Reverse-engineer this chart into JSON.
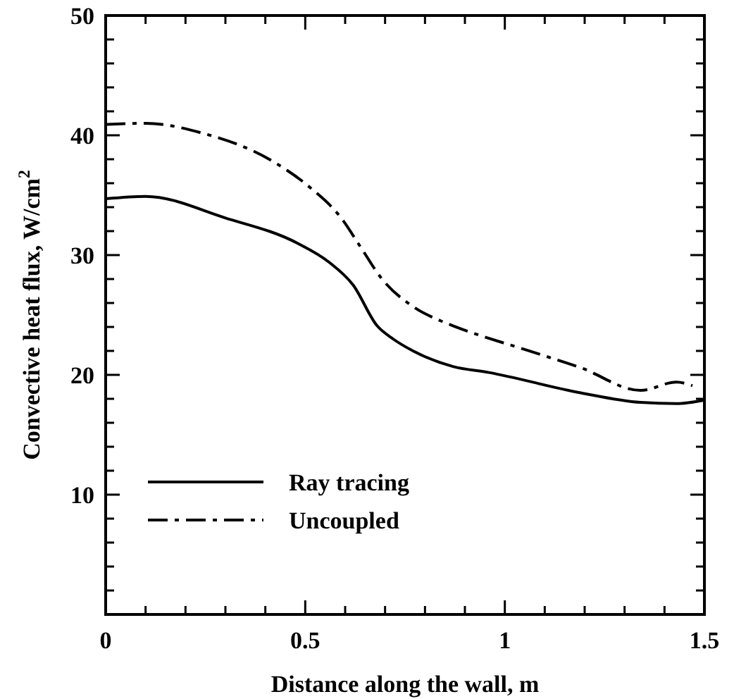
{
  "chart_data": {
    "type": "line",
    "xlabel": "Distance along the wall, m",
    "ylabel": "Convective heat flux, W/cm$^{2}$",
    "xlim": [
      0,
      1.5
    ],
    "ylim": [
      0,
      50
    ],
    "xticks": [
      0,
      {
        "value": 0.1,
        "label": null
      },
      {
        "value": 0.2,
        "label": null
      },
      {
        "value": 0.3,
        "label": null
      },
      {
        "value": 0.4,
        "label": null
      },
      0.5,
      {
        "value": 0.6,
        "label": null
      },
      {
        "value": 0.7,
        "label": null
      },
      {
        "value": 0.8,
        "label": null
      },
      {
        "value": 0.9,
        "label": null
      },
      1,
      {
        "value": 1.1,
        "label": null
      },
      {
        "value": 1.2,
        "label": null
      },
      {
        "value": 1.3,
        "label": null
      },
      {
        "value": 1.4,
        "label": null
      },
      1.5
    ],
    "yticks": [
      {
        "value": 0,
        "label": null
      },
      {
        "value": 2,
        "label": null
      },
      {
        "value": 4,
        "label": null
      },
      {
        "value": 6,
        "label": null
      },
      {
        "value": 8,
        "label": null
      },
      10,
      {
        "value": 12,
        "label": null
      },
      {
        "value": 14,
        "label": null
      },
      {
        "value": 16,
        "label": null
      },
      {
        "value": 18,
        "label": null
      },
      20,
      {
        "value": 22,
        "label": null
      },
      {
        "value": 24,
        "label": null
      },
      {
        "value": 26,
        "label": null
      },
      {
        "value": 28,
        "label": null
      },
      30,
      {
        "value": 32,
        "label": null
      },
      {
        "value": 34,
        "label": null
      },
      {
        "value": 36,
        "label": null
      },
      {
        "value": 38,
        "label": null
      },
      40,
      {
        "value": 42,
        "label": null
      },
      {
        "value": 44,
        "label": null
      },
      {
        "value": 46,
        "label": null
      },
      {
        "value": 48,
        "label": null
      },
      50
    ],
    "grid": false,
    "legend": "bottom left",
    "series": [
      {
        "name": "Ray tracing",
        "color": "#000000",
        "line_style": "solid",
        "x": [
          0,
          0.1,
          0.3,
          0.48,
          0.56,
          0.62,
          0.68,
          0.72,
          0.77,
          0.87,
          0.96,
          1.19,
          1.34,
          1.43,
          1.5
        ],
        "values": [
          34.7,
          34.9,
          33.1,
          31.0,
          29.4,
          27.5,
          24.1,
          23.0,
          22.0,
          20.7,
          20.2,
          18.5,
          17.7,
          17.6,
          17.9
        ]
      },
      {
        "name": "Uncoupled",
        "color": "#000000",
        "line_style": "dashdot",
        "x": [
          0,
          0.1,
          0.24,
          0.42,
          0.51,
          0.59,
          0.64,
          0.69,
          0.77,
          0.84,
          0.87,
          1.08,
          1.19,
          1.34,
          1.43,
          1.47
        ],
        "values": [
          40.9,
          41.0,
          40.2,
          37.8,
          35.7,
          33.1,
          30.6,
          28.1,
          25.7,
          24.5,
          24.1,
          21.8,
          20.6,
          18.7,
          19.4,
          19.1
        ]
      }
    ]
  }
}
